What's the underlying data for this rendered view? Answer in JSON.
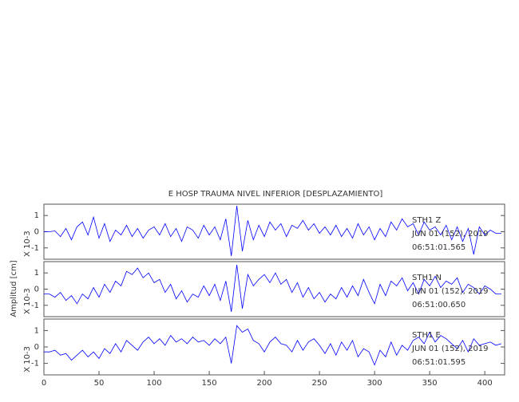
{
  "y_axis_label": "Amplitud [cm]",
  "chart_data": [
    {
      "type": "line",
      "title": "E HOSP TRAUMA NIVEL INFERIOR [DESPLAZAMIENTO]",
      "y_label": "X 10-3",
      "color": "#0000ff",
      "annotations": [
        "STH1 Z",
        "JUN 01 (152), 2019",
        "06:51:01.565"
      ],
      "xlim": [
        0,
        418
      ],
      "ylim": [
        -1.7,
        1.7
      ],
      "yticks": [
        -1,
        0,
        1
      ],
      "x": [
        0,
        5,
        10,
        15,
        20,
        25,
        30,
        35,
        40,
        45,
        50,
        55,
        60,
        65,
        70,
        75,
        80,
        85,
        90,
        95,
        100,
        105,
        110,
        115,
        120,
        125,
        130,
        135,
        140,
        145,
        150,
        155,
        160,
        165,
        170,
        175,
        180,
        185,
        190,
        195,
        200,
        205,
        210,
        215,
        220,
        225,
        230,
        235,
        240,
        245,
        250,
        255,
        260,
        265,
        270,
        275,
        280,
        285,
        290,
        295,
        300,
        305,
        310,
        315,
        320,
        325,
        330,
        335,
        340,
        345,
        350,
        355,
        360,
        365,
        370,
        375,
        380,
        385,
        390,
        395,
        400,
        405,
        410,
        415
      ],
      "values": [
        0,
        0,
        0.05,
        -0.3,
        0.2,
        -0.5,
        0.3,
        0.6,
        -0.2,
        0.9,
        -0.4,
        0.5,
        -0.6,
        0.1,
        -0.2,
        0.4,
        -0.3,
        0.2,
        -0.4,
        0.1,
        0.3,
        -0.2,
        0.5,
        -0.3,
        0.2,
        -0.6,
        0.3,
        0.1,
        -0.4,
        0.4,
        -0.2,
        0.3,
        -0.5,
        0.8,
        -1.5,
        1.6,
        -1.2,
        0.7,
        -0.5,
        0.4,
        -0.3,
        0.6,
        0.1,
        0.5,
        -0.3,
        0.4,
        0.2,
        0.7,
        0.1,
        0.5,
        -0.1,
        0.3,
        -0.2,
        0.4,
        -0.3,
        0.2,
        -0.4,
        0.5,
        -0.2,
        0.3,
        -0.5,
        0.2,
        -0.3,
        0.6,
        0.1,
        0.8,
        0.3,
        0.5,
        -0.2,
        0.6,
        0.1,
        0.3,
        -0.2,
        0.4,
        -0.5,
        0.3,
        -0.6,
        0.2,
        -1.4,
        0.3,
        -0.2,
        0.1,
        -0.1,
        -0.1
      ]
    },
    {
      "type": "line",
      "y_label": "X 10-3",
      "color": "#0000ff",
      "annotations": [
        "STH1 N",
        "JUN 01 (152), 2019",
        "06:51:00.650"
      ],
      "xlim": [
        0,
        418
      ],
      "ylim": [
        -1.7,
        1.7
      ],
      "yticks": [
        -1,
        0,
        1
      ],
      "x": [
        0,
        5,
        10,
        15,
        20,
        25,
        30,
        35,
        40,
        45,
        50,
        55,
        60,
        65,
        70,
        75,
        80,
        85,
        90,
        95,
        100,
        105,
        110,
        115,
        120,
        125,
        130,
        135,
        140,
        145,
        150,
        155,
        160,
        165,
        170,
        175,
        180,
        185,
        190,
        195,
        200,
        205,
        210,
        215,
        220,
        225,
        230,
        235,
        240,
        245,
        250,
        255,
        260,
        265,
        270,
        275,
        280,
        285,
        290,
        295,
        300,
        305,
        310,
        315,
        320,
        325,
        330,
        335,
        340,
        345,
        350,
        355,
        360,
        365,
        370,
        375,
        380,
        385,
        390,
        395,
        400,
        405,
        410,
        415
      ],
      "values": [
        -0.3,
        -0.3,
        -0.5,
        -0.2,
        -0.7,
        -0.4,
        -0.9,
        -0.3,
        -0.6,
        0.1,
        -0.5,
        0.3,
        -0.2,
        0.5,
        0.2,
        1.1,
        0.9,
        1.3,
        0.7,
        1.0,
        0.4,
        0.6,
        -0.2,
        0.3,
        -0.6,
        -0.1,
        -0.8,
        -0.3,
        -0.5,
        0.2,
        -0.4,
        0.3,
        -0.7,
        0.5,
        -1.4,
        1.5,
        -1.2,
        0.9,
        0.2,
        0.6,
        0.9,
        0.4,
        1.0,
        0.3,
        0.6,
        -0.2,
        0.4,
        -0.5,
        0.1,
        -0.6,
        -0.2,
        -0.8,
        -0.3,
        -0.6,
        0.1,
        -0.5,
        0.2,
        -0.4,
        0.6,
        -0.2,
        -0.9,
        0.3,
        -0.4,
        0.5,
        0.2,
        0.7,
        -0.1,
        0.4,
        -0.3,
        0.6,
        0.2,
        0.8,
        0.1,
        0.5,
        0.3,
        0.7,
        -0.2,
        0.3,
        0.1,
        -0.3,
        0.2,
        0.0,
        -0.3,
        -0.3
      ]
    },
    {
      "type": "line",
      "y_label": "X 10-3",
      "color": "#0000ff",
      "annotations": [
        "STH1 E",
        "JUN 01 (152), 2019",
        "06:51:01.595"
      ],
      "xlim": [
        0,
        418
      ],
      "ylim": [
        -1.7,
        1.7
      ],
      "yticks": [
        -1,
        0,
        1
      ],
      "xticks": [
        0,
        50,
        100,
        150,
        200,
        250,
        300,
        350,
        400
      ],
      "x": [
        0,
        5,
        10,
        15,
        20,
        25,
        30,
        35,
        40,
        45,
        50,
        55,
        60,
        65,
        70,
        75,
        80,
        85,
        90,
        95,
        100,
        105,
        110,
        115,
        120,
        125,
        130,
        135,
        140,
        145,
        150,
        155,
        160,
        165,
        170,
        175,
        180,
        185,
        190,
        195,
        200,
        205,
        210,
        215,
        220,
        225,
        230,
        235,
        240,
        245,
        250,
        255,
        260,
        265,
        270,
        275,
        280,
        285,
        290,
        295,
        300,
        305,
        310,
        315,
        320,
        325,
        330,
        335,
        340,
        345,
        350,
        355,
        360,
        365,
        370,
        375,
        380,
        385,
        390,
        395,
        400,
        405,
        410,
        415
      ],
      "values": [
        -0.3,
        -0.3,
        -0.2,
        -0.5,
        -0.4,
        -0.8,
        -0.5,
        -0.2,
        -0.6,
        -0.3,
        -0.7,
        -0.1,
        -0.4,
        0.2,
        -0.3,
        0.4,
        0.1,
        -0.2,
        0.3,
        0.6,
        0.2,
        0.5,
        0.1,
        0.7,
        0.3,
        0.5,
        0.2,
        0.6,
        0.3,
        0.4,
        0.1,
        0.5,
        0.2,
        0.6,
        -1.0,
        1.3,
        0.9,
        1.1,
        0.4,
        0.2,
        -0.3,
        0.3,
        0.6,
        0.2,
        0.1,
        -0.3,
        0.4,
        -0.2,
        0.3,
        0.5,
        0.1,
        -0.4,
        0.2,
        -0.5,
        0.3,
        -0.2,
        0.4,
        -0.6,
        -0.1,
        -0.3,
        -1.1,
        -0.2,
        -0.6,
        0.3,
        -0.5,
        0.1,
        -0.2,
        0.4,
        0.6,
        0.2,
        0.9,
        0.3,
        0.7,
        0.5,
        0.2,
        -0.1,
        0.4,
        -0.3,
        0.5,
        0.1,
        0.2,
        0.3,
        0.1,
        0.2
      ]
    }
  ]
}
